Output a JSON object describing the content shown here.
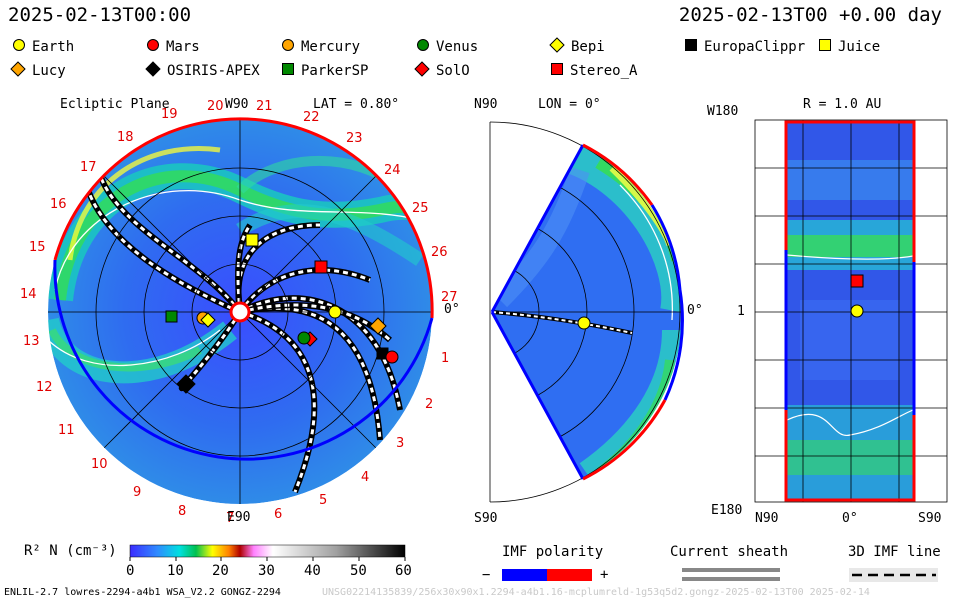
{
  "header": {
    "date_left": "2025-02-13T00:00",
    "date_right": "2025-02-13T00 +0.00 day"
  },
  "legend": [
    {
      "name": "Earth",
      "marker": "circle",
      "color": "#ffff00"
    },
    {
      "name": "Mars",
      "marker": "circle",
      "color": "#ff0000"
    },
    {
      "name": "Mercury",
      "marker": "circle",
      "color": "#ffa500"
    },
    {
      "name": "Venus",
      "marker": "circle",
      "color": "#008800"
    },
    {
      "name": "Bepi",
      "marker": "diamond",
      "color": "#ffff00"
    },
    {
      "name": "EuropaClippr",
      "marker": "square",
      "color": "#000000"
    },
    {
      "name": "Juice",
      "marker": "square",
      "color": "#ffff00"
    },
    {
      "name": "Lucy",
      "marker": "diamond",
      "color": "#ffa500"
    },
    {
      "name": "OSIRIS-APEX",
      "marker": "diamond",
      "color": "#000000"
    },
    {
      "name": "ParkerSP",
      "marker": "square",
      "color": "#008800"
    },
    {
      "name": "SolO",
      "marker": "diamond",
      "color": "#ff0000"
    },
    {
      "name": "Stereo_A",
      "marker": "square",
      "color": "#ff0000"
    }
  ],
  "ecliptic": {
    "title": "Ecliptic Plane",
    "top_label": "W90",
    "bottom_label": "E90",
    "right_label": "0°",
    "lat_label": "LAT = 0.80°",
    "rotation_numbers": [
      "1",
      "2",
      "3",
      "4",
      "5",
      "6",
      "7",
      "8",
      "9",
      "10",
      "11",
      "12",
      "13",
      "14",
      "15",
      "16",
      "17",
      "18",
      "19",
      "20",
      "21",
      "22",
      "23",
      "24",
      "25",
      "26",
      "27"
    ]
  },
  "meridional": {
    "top_label": "N90",
    "bottom_label": "S90",
    "lon_label": "LON = 0°",
    "right_label": "0°"
  },
  "radial": {
    "title": "R = 1.0 AU",
    "top_left": "W180",
    "bottom_left": "E180",
    "left_mid": "1",
    "x_left": "N90",
    "x_mid": "0°",
    "x_right": "S90"
  },
  "colorbar": {
    "label": "R² N (cm⁻³)",
    "ticks": [
      "0",
      "10",
      "20",
      "30",
      "40",
      "50",
      "60"
    ],
    "stops": [
      "#3b2cff",
      "#2f8bff",
      "#00e0e0",
      "#00c050",
      "#ffff00",
      "#ff8000",
      "#b00000",
      "#ff80ff",
      "#ffffff",
      "#a0a0a0",
      "#000000"
    ]
  },
  "imf": {
    "label": "IMF polarity",
    "minus": "−",
    "plus": "+",
    "neg_color": "#0000ff",
    "pos_color": "#ff0000"
  },
  "current_sheath": {
    "label": "Current sheath"
  },
  "imf_line": {
    "label": "3D IMF line"
  },
  "footer": {
    "left": "ENLIL-2.7 lowres-2294-a4b1 WSA_V2.2 GONGZ-2294",
    "right": "UNSG02214135839/256x30x90x1.2294-a4b1.16-mcplumreld-1g53q5d2.gongz-2025-02-13T00   2025-02-14"
  },
  "chart_data": {
    "type": "heatmap",
    "variable": "R² N (cm⁻³)",
    "colorbar_range": [
      0,
      60
    ],
    "ecliptic_positions": [
      {
        "name": "Earth",
        "r_au": 1.0,
        "lon_deg": 0
      },
      {
        "name": "Juice",
        "r_au": 0.9,
        "lon_deg": 70
      },
      {
        "name": "Stereo_A",
        "r_au": 1.0,
        "lon_deg": 30
      },
      {
        "name": "Mercury",
        "r_au": 0.3,
        "lon_deg": 175
      },
      {
        "name": "Bepi",
        "r_au": 0.3,
        "lon_deg": 195
      },
      {
        "name": "ParkerSP",
        "r_au": 0.7,
        "lon_deg": 180
      },
      {
        "name": "OSIRIS-APEX",
        "r_au": 0.9,
        "lon_deg": 225
      },
      {
        "name": "Venus",
        "r_au": 0.7,
        "lon_deg": -30
      },
      {
        "name": "SolO",
        "r_au": 0.7,
        "lon_deg": -25
      },
      {
        "name": "Mars",
        "r_au": 1.5,
        "lon_deg": -20
      },
      {
        "name": "EuropaClippr",
        "r_au": 1.45,
        "lon_deg": -16
      },
      {
        "name": "Lucy",
        "r_au": 1.45,
        "lon_deg": -5
      }
    ]
  }
}
